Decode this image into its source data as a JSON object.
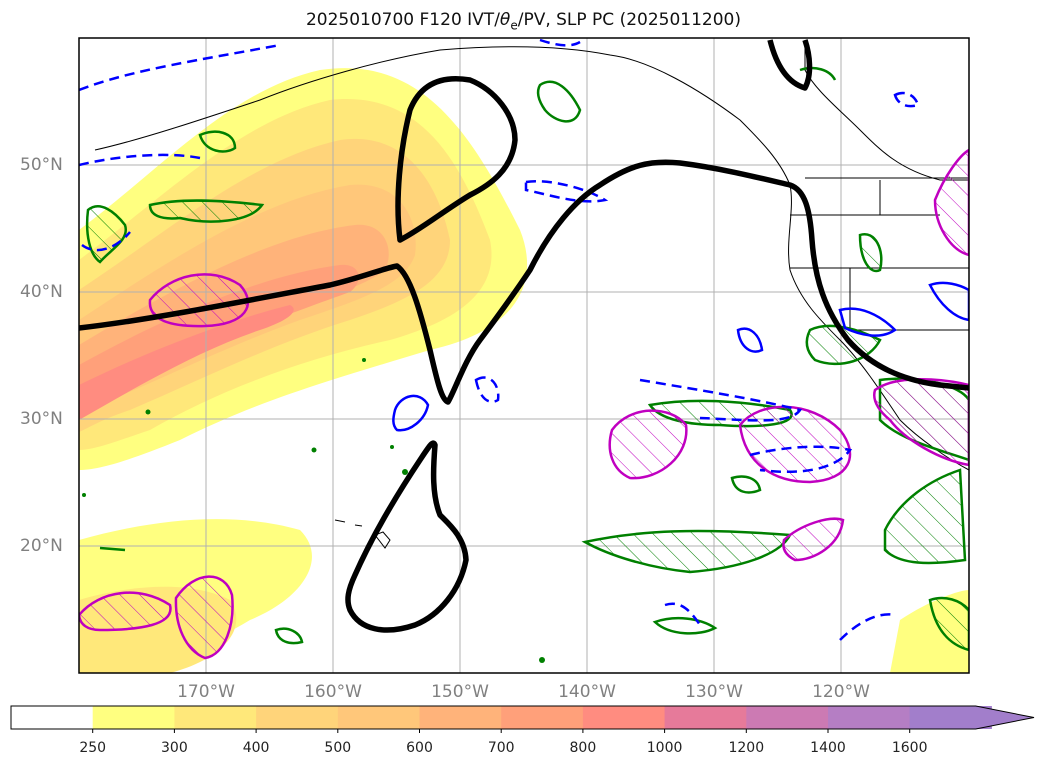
{
  "title": {
    "prefix": "2025010700 F120 IVT/",
    "theta": "θ",
    "theta_sub": "e",
    "suffix": "/PV, SLP PC (2025011200)"
  },
  "map": {
    "lat_labels": [
      "50°N",
      "40°N",
      "30°N",
      "20°N"
    ],
    "lon_labels": [
      "170°W",
      "160°W",
      "150°W",
      "140°W",
      "130°W",
      "120°W"
    ],
    "grid": true,
    "region": "North Pacific and western North America"
  },
  "contours": {
    "slp_pc_color": "#000000",
    "theta_e_color": "#008000",
    "pv_color": "#c000c0",
    "dashed_color": "#0000ff"
  },
  "colorbar": {
    "labels": [
      "250",
      "300",
      "400",
      "500",
      "600",
      "700",
      "800",
      "1000",
      "1200",
      "1400",
      "1600"
    ],
    "colors": [
      "#ffffff",
      "#ffff80",
      "#ffe87a",
      "#ffd47a",
      "#ffc77a",
      "#ffb37a",
      "#ffa07a",
      "#ff8c80",
      "#e67a9a",
      "#cc7ab3",
      "#b57ec4",
      "#a27ecb"
    ],
    "extend": "max"
  }
}
